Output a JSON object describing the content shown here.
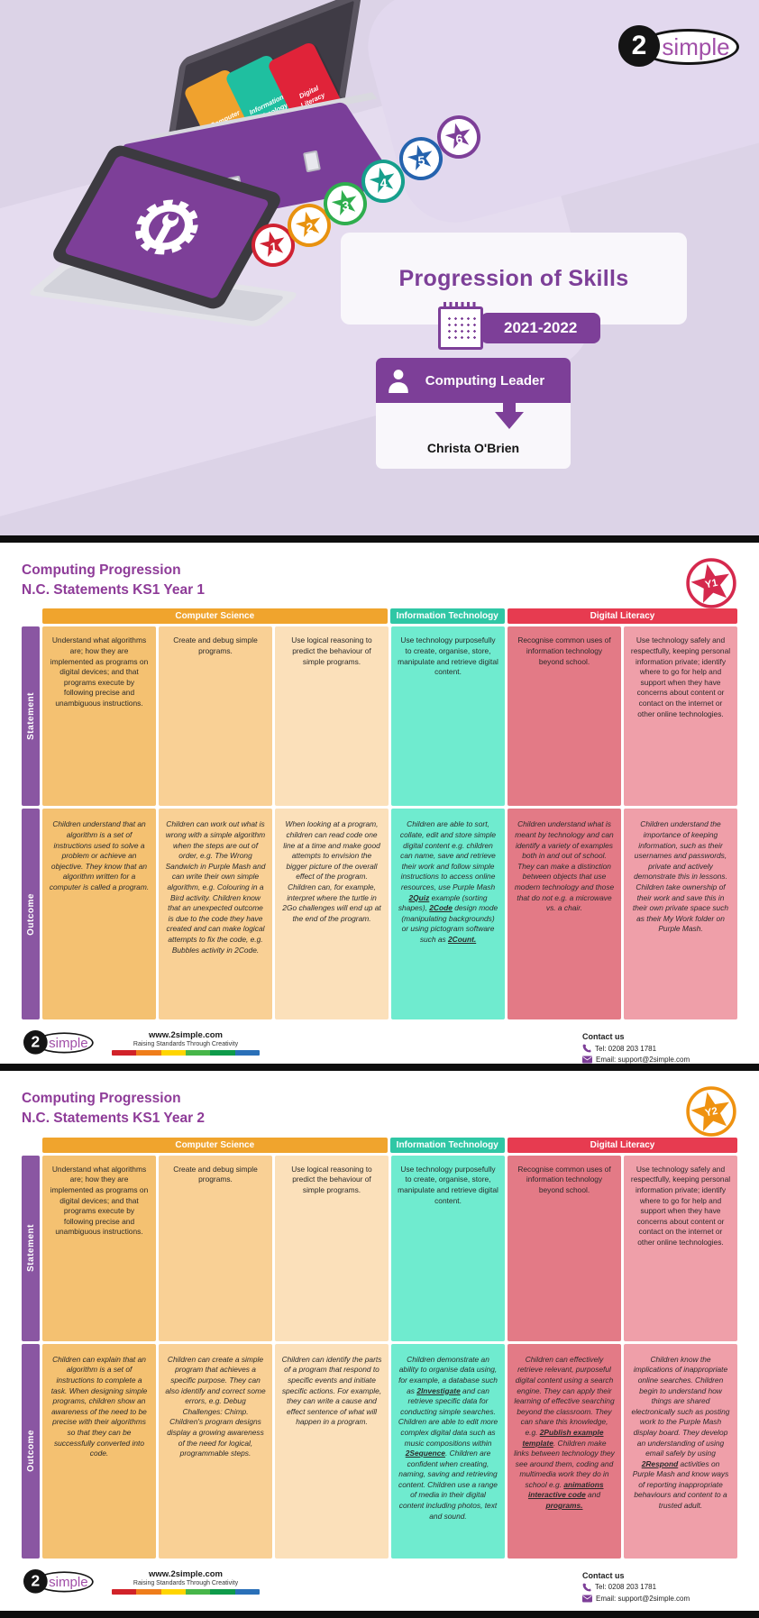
{
  "hero": {
    "logo_prefix": "2",
    "logo_name": "simple",
    "title": "Progression of Skills",
    "year_range": "2021-2022",
    "role_title": "Computing Leader",
    "leader_name": "Christa O'Brien",
    "toolbox_cards": [
      {
        "label": "Computer Science",
        "color": "#f0a22e"
      },
      {
        "label": "Information Technology",
        "color": "#1fbfa0"
      },
      {
        "label": "Digital Literacy",
        "color": "#e02339"
      }
    ],
    "star_coins": [
      {
        "number": "1",
        "color": "#cf2233"
      },
      {
        "number": "2",
        "color": "#e8920f"
      },
      {
        "number": "3",
        "color": "#2fae4e"
      },
      {
        "number": "4",
        "color": "#169f8c"
      },
      {
        "number": "5",
        "color": "#2563ae"
      },
      {
        "number": "6",
        "color": "#7d3f98"
      }
    ]
  },
  "cell_colors": [
    "#f4c171",
    "#f9d095",
    "#fbe0ba",
    "#6febcf",
    "#e37a86",
    "#ef9fa9"
  ],
  "sections": [
    {
      "title_line1": "Computing Progression",
      "title_line2": "N.C. Statements KS1 Year 1",
      "badge_label": "Y1",
      "badge_color": "#d5294d",
      "statement_label": "Statement",
      "outcome_label": "Outcome",
      "groups": [
        {
          "label": "Computer Science",
          "color": "#f0a42d",
          "span": 3
        },
        {
          "label": "Information  Technology",
          "color": "#2fc7a5",
          "span": 1
        },
        {
          "label": "Digital Literacy",
          "color": "#e73b50",
          "span": 2
        }
      ],
      "statements": [
        "Understand what algorithms are; how they are implemented as programs on digital devices; and that programs execute by following precise and unambiguous instructions.",
        "Create and debug simple programs.",
        "Use logical reasoning to predict the behaviour of simple programs.",
        "Use technology purposefully to create, organise, store, manipulate and retrieve digital content.",
        "Recognise common uses of information technology beyond school.",
        "Use technology safely and respectfully, keeping personal information private; identify where to go for help and support when they have concerns about content or contact on the internet or other online technologies."
      ],
      "outcomes": [
        [
          {
            "t": "Children understand that an algorithm is a set of instructions used to solve a problem or achieve an objective. They know that an algorithm written for a computer is called a program."
          }
        ],
        [
          {
            "t": "Children can work out what is wrong with a simple algorithm when the steps are out of order, e.g. The Wrong Sandwich in Purple Mash and can write their own simple algorithm, e.g. Colouring in a Bird activity. Children know that an unexpected outcome is due to the code they have created and can make logical attempts to fix the code, e.g. Bubbles activity in 2Code."
          }
        ],
        [
          {
            "t": "When looking at a program, children can read code one line at a time and make good attempts to envision the bigger picture of the overall effect of the program. Children can, for example, interpret where the turtle in 2Go challenges will end up at the end of the program."
          }
        ],
        [
          {
            "t": "Children are able to sort, collate, edit and store simple digital content e.g. children can name, save and retrieve their work and follow simple instructions to access online resources, use Purple Mash "
          },
          {
            "t": "2Quiz",
            "b": true
          },
          {
            "t": " example (sorting shapes), "
          },
          {
            "t": "2Code",
            "b": true
          },
          {
            "t": " design mode (manipulating backgrounds) or using pictogram software such as "
          },
          {
            "t": "2Count.",
            "b": true
          }
        ],
        [
          {
            "t": "Children understand what is meant by technology and can identify a variety of examples both in and out of school. They can make a distinction between objects that use modern technology and those that do not e.g. a microwave vs. a chair."
          }
        ],
        [
          {
            "t": "Children understand the importance of keeping information, such as their usernames and passwords, private and actively demonstrate this in lessons. Children take ownership of their work and save this in their own private space such as their My Work folder on Purple Mash."
          }
        ]
      ]
    },
    {
      "title_line1": "Computing Progression",
      "title_line2": "N.C. Statements KS1 Year 2",
      "badge_label": "Y2",
      "badge_color": "#ef9210",
      "statement_label": "Statement",
      "outcome_label": "Outcome",
      "groups": [
        {
          "label": "Computer Science",
          "color": "#f0a42d",
          "span": 3
        },
        {
          "label": "Information  Technology",
          "color": "#2fc7a5",
          "span": 1
        },
        {
          "label": "Digital Literacy",
          "color": "#e73b50",
          "span": 2
        }
      ],
      "statements": [
        "Understand what algorithms are; how they are implemented as programs on digital devices; and that programs execute by following precise and unambiguous instructions.",
        "Create and debug simple programs.",
        "Use logical reasoning to predict the behaviour of simple programs.",
        "Use technology purposefully to create, organise, store, manipulate and retrieve digital content.",
        "Recognise common uses of information technology beyond school.",
        "Use technology safely and respectfully, keeping personal information private; identify where to go for help and support when they have concerns about content or contact on the internet or other online technologies."
      ],
      "outcomes": [
        [
          {
            "t": "Children can explain that an algorithm is a set of instructions to complete a task. When designing simple programs, children show an awareness of the need to be precise with their algorithms so that they can be successfully converted into code."
          }
        ],
        [
          {
            "t": "Children can create a simple program that achieves a specific purpose. They can also identify and correct some errors, e.g. Debug Challenges: Chimp. Children's program designs display a growing awareness of the need for logical, programmable steps."
          }
        ],
        [
          {
            "t": "Children can identify the parts of a program that respond to specific events and initiate specific actions. For example, they can write a cause and effect sentence of what will happen in a program."
          }
        ],
        [
          {
            "t": "Children demonstrate an ability to organise data using, for example, a database such as "
          },
          {
            "t": "2Investigate",
            "b": true
          },
          {
            "t": " and can retrieve specific data for conducting simple searches. Children are able to edit more complex digital data such as music compositions within "
          },
          {
            "t": "2Sequence",
            "b": true
          },
          {
            "t": ". Children are confident when creating, naming, saving and retrieving content. Children use a range of media in their digital content including photos, text and sound."
          }
        ],
        [
          {
            "t": "Children can effectively retrieve relevant, purposeful digital content using a search engine. They can apply their learning of effective searching beyond the classroom. They can share this knowledge, e.g. "
          },
          {
            "t": "2Publish example template",
            "b": true
          },
          {
            "t": ". Children make links between technology they see around them, coding and multimedia work they do in school e.g. "
          },
          {
            "t": "animations interactive code",
            "b": true
          },
          {
            "t": " and "
          },
          {
            "t": "programs.",
            "b": true
          }
        ],
        [
          {
            "t": "Children know the implications of inappropriate online searches. Children begin to understand how things are shared electronically such as posting work to the Purple Mash display board. They develop an understanding of using email safely by using "
          },
          {
            "t": "2Respond",
            "b": true
          },
          {
            "t": " activities on Purple Mash and know ways of reporting inappropriate behaviours and content to a trusted adult."
          }
        ]
      ]
    }
  ],
  "footer": {
    "website": "www.2simple.com",
    "tagline": "Raising Standards Through Creativity",
    "rainbow": [
      "#d12229",
      "#ef7d1a",
      "#ffd500",
      "#47b649",
      "#0e9b4a",
      "#2a70b8"
    ],
    "contact_heading": "Contact us",
    "tel": "Tel: 0208 203 1781",
    "email": "Email: support@2simple.com"
  }
}
